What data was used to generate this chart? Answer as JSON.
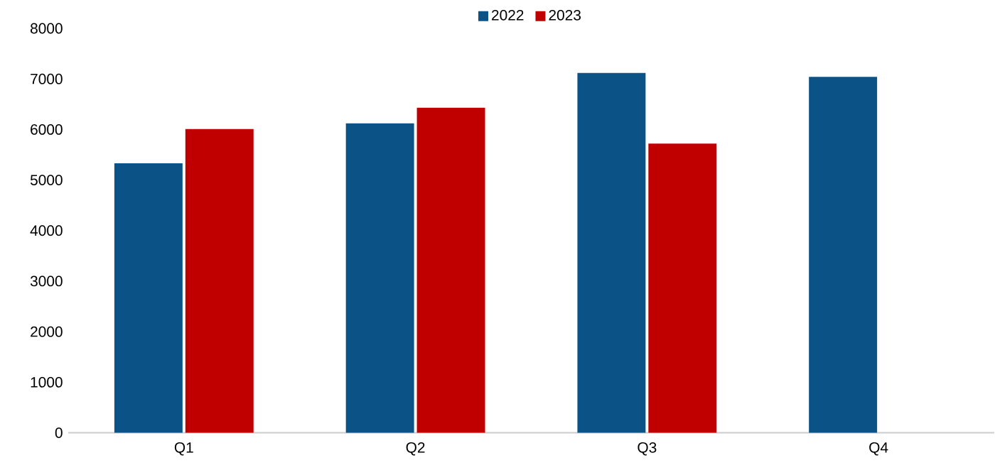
{
  "chart_data": {
    "type": "bar",
    "categories": [
      "Q1",
      "Q2",
      "Q3",
      "Q4"
    ],
    "series": [
      {
        "name": "2022",
        "color": "#0b5287",
        "values": [
          5330,
          6120,
          7120,
          7040
        ]
      },
      {
        "name": "2023",
        "color": "#c00000",
        "values": [
          6010,
          6430,
          5720,
          null
        ]
      }
    ],
    "ylim": [
      0,
      8000
    ],
    "yticks": [
      0,
      1000,
      2000,
      3000,
      4000,
      5000,
      6000,
      7000,
      8000
    ],
    "grid": false,
    "legend": "top"
  }
}
